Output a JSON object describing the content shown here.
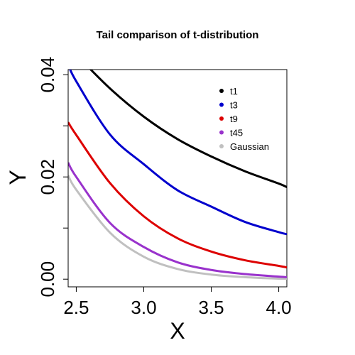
{
  "chart_data": {
    "type": "line",
    "title": "Tail comparison of t-distribution",
    "xlabel": "X",
    "ylabel": "Y",
    "xlim": [
      2.44,
      4.06
    ],
    "ylim": [
      -0.0015,
      0.041
    ],
    "x_ticks": [
      2.5,
      3.0,
      3.5,
      4.0
    ],
    "x_tick_labels": [
      "2.5",
      "3.0",
      "3.5",
      "4.0"
    ],
    "y_ticks": [
      0.0,
      0.02,
      0.04
    ],
    "y_tick_labels": [
      "0.00",
      "0.02",
      "0.04"
    ],
    "y_minor_ticks": [
      0.01,
      0.03
    ],
    "grid": false,
    "legend_position": "top-right",
    "series": [
      {
        "name": "t1",
        "color": "#000000",
        "x": [
          2.5,
          2.75,
          3.0,
          3.25,
          3.5,
          3.75,
          4.0,
          4.06
        ],
        "y": [
          0.0439,
          0.0373,
          0.0318,
          0.0274,
          0.024,
          0.0211,
          0.0187,
          0.018
        ]
      },
      {
        "name": "t3",
        "color": "#0000CD",
        "x": [
          2.44,
          2.5,
          2.75,
          3.0,
          3.25,
          3.5,
          3.75,
          4.0,
          4.06
        ],
        "y": [
          0.042,
          0.0387,
          0.0283,
          0.0225,
          0.0174,
          0.0142,
          0.0112,
          0.0092,
          0.0088
        ]
      },
      {
        "name": "t9",
        "color": "#DD0000",
        "x": [
          2.44,
          2.5,
          2.75,
          3.0,
          3.25,
          3.5,
          3.75,
          4.0,
          4.06
        ],
        "y": [
          0.0307,
          0.0282,
          0.0188,
          0.0123,
          0.008,
          0.0054,
          0.0037,
          0.0026,
          0.0023
        ]
      },
      {
        "name": "t45",
        "color": "#9932CC",
        "x": [
          2.44,
          2.5,
          2.75,
          3.0,
          3.25,
          3.5,
          3.75,
          4.0,
          4.06
        ],
        "y": [
          0.0228,
          0.02,
          0.011,
          0.0063,
          0.0033,
          0.0018,
          0.001,
          0.0005,
          0.0004
        ]
      },
      {
        "name": "Gaussian",
        "color": "#C0C0C0",
        "x": [
          2.44,
          2.5,
          2.75,
          3.0,
          3.25,
          3.5,
          3.75,
          4.0,
          4.06
        ],
        "y": [
          0.0203,
          0.0175,
          0.0091,
          0.0044,
          0.002,
          0.0009,
          0.0004,
          0.0001,
          0.0001
        ]
      }
    ]
  }
}
